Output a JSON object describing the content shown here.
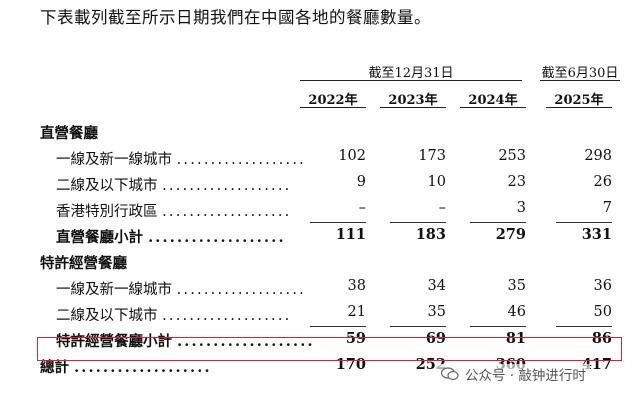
{
  "intro": "下表載列截至所示日期我們在中國各地的餐廳數量。",
  "header": {
    "group1": "截至12月31日",
    "group2": "截至6月30日",
    "years": [
      "2022年",
      "2023年",
      "2024年",
      "2025年"
    ]
  },
  "dots": "...................",
  "rows": [
    {
      "label": "直營餐廳",
      "type": "section"
    },
    {
      "label": "一線及新一線城市",
      "type": "item",
      "values": [
        "102",
        "173",
        "253",
        "298"
      ]
    },
    {
      "label": "二線及以下城市",
      "type": "item",
      "values": [
        "9",
        "10",
        "23",
        "26"
      ]
    },
    {
      "label": "香港特別行政區",
      "type": "item",
      "values": [
        "–",
        "–",
        "3",
        "7"
      ]
    },
    {
      "label": "直營餐廳小計",
      "type": "subtotal",
      "values": [
        "111",
        "183",
        "279",
        "331"
      ]
    },
    {
      "label": "特許經營餐廳",
      "type": "section"
    },
    {
      "label": "一線及新一線城市",
      "type": "item",
      "values": [
        "38",
        "34",
        "35",
        "36"
      ]
    },
    {
      "label": "二線及以下城市",
      "type": "item",
      "values": [
        "21",
        "35",
        "46",
        "50"
      ]
    },
    {
      "label": "特許經營餐廳小計",
      "type": "subtotal",
      "values": [
        "59",
        "69",
        "81",
        "86"
      ]
    },
    {
      "label": "總計",
      "type": "total",
      "values": [
        "170",
        "252",
        "360",
        "417"
      ]
    }
  ],
  "watermark": "公众号 · 敲钟进行时"
}
